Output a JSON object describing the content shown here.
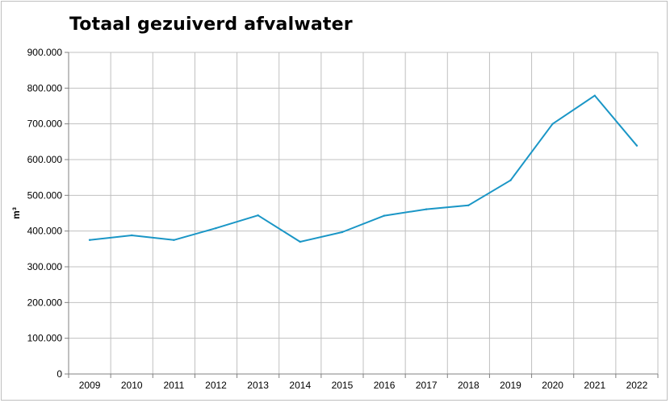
{
  "chart_data": {
    "type": "line",
    "title": "Totaal gezuiverd afvalwater",
    "xlabel": "",
    "ylabel": "m³",
    "categories": [
      "2009",
      "2010",
      "2011",
      "2012",
      "2013",
      "2014",
      "2015",
      "2016",
      "2017",
      "2018",
      "2019",
      "2020",
      "2021",
      "2022"
    ],
    "series": [
      {
        "values": [
          375000,
          388000,
          375000,
          408000,
          444000,
          370000,
          397000,
          443000,
          461000,
          472000,
          542000,
          700000,
          779000,
          639000
        ],
        "color": "#1a96c6"
      }
    ],
    "ylim": [
      0,
      900000
    ],
    "yticks": [
      0,
      100000,
      200000,
      300000,
      400000,
      500000,
      600000,
      700000,
      800000,
      900000
    ],
    "ytick_labels": [
      "0",
      "100.000",
      "200.000",
      "300.000",
      "400.000",
      "500.000",
      "600.000",
      "700.000",
      "800.000",
      "900.000"
    ],
    "grid": true,
    "legend": "none",
    "colors": {
      "line": "#1a96c6",
      "grid": "#c0c0c0",
      "axis": "#808080"
    }
  }
}
